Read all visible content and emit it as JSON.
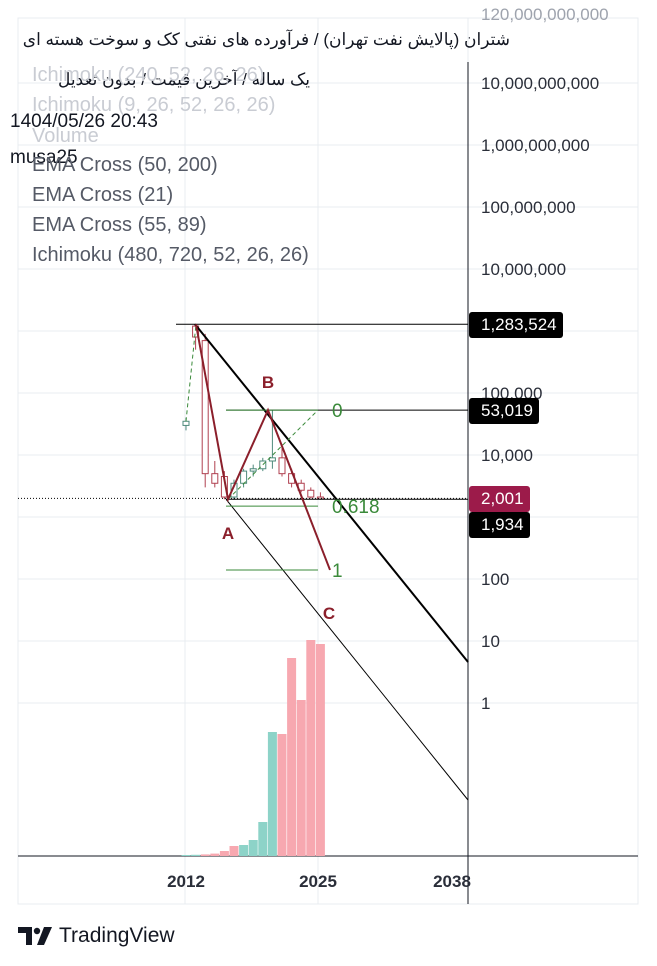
{
  "header": {
    "title": "شتران (پالایش نفت تهران) / فرآورده های نفتی کک و سوخت هسته ای",
    "subtitle": "یک ساله / آخرین قیمت / بدون تعدیل",
    "datetime": "1404/05/26 20:43",
    "author": "musa25"
  },
  "legend": {
    "ghost_lines": [
      "Ichimoku (240, 52, 26, 26)",
      "Ichimoku (9, 26, 52, 26, 26)",
      "Volume"
    ],
    "lines": [
      "EMA Cross (50, 200)",
      "EMA Cross (21)",
      "EMA Cross (55, 89)",
      "Ichimoku (480, 720, 52, 26, 26)"
    ]
  },
  "price_labels": [
    {
      "text": "1,283,524",
      "color": "#000000"
    },
    {
      "text": "53,019",
      "color": "#000000"
    },
    {
      "text": "2,001",
      "color": "#9c1b4a"
    },
    {
      "text": "1,934",
      "color": "#000000"
    }
  ],
  "branding": {
    "name": "TradingView"
  },
  "chart_data": {
    "type": "candlestick",
    "y_scale": "log",
    "y_ticks": [
      "120,000,000,000",
      "10,000,000,000",
      "1,000,000,000",
      "100,000,000",
      "10,000,000",
      "100,000",
      "10,000",
      "100",
      "10",
      "1"
    ],
    "x_ticks": [
      "2012",
      "2025",
      "2038"
    ],
    "candles": [
      {
        "o": 30000,
        "h": 40000,
        "l": 25000,
        "c": 35000,
        "dir": "up"
      },
      {
        "o": 1200000,
        "h": 1283524,
        "l": 500000,
        "c": 800000,
        "dir": "down"
      },
      {
        "o": 700000,
        "h": 900000,
        "l": 3000,
        "c": 5000,
        "dir": "down"
      },
      {
        "o": 5000,
        "h": 8000,
        "l": 3000,
        "c": 3500,
        "dir": "down"
      },
      {
        "o": 4500,
        "h": 5500,
        "l": 1934,
        "c": 2100,
        "dir": "down"
      },
      {
        "o": 2100,
        "h": 4000,
        "l": 1900,
        "c": 3500,
        "dir": "up"
      },
      {
        "o": 3500,
        "h": 6000,
        "l": 3000,
        "c": 5500,
        "dir": "up"
      },
      {
        "o": 5500,
        "h": 7000,
        "l": 4500,
        "c": 6000,
        "dir": "up"
      },
      {
        "o": 6000,
        "h": 9000,
        "l": 5500,
        "c": 8000,
        "dir": "up"
      },
      {
        "o": 8000,
        "h": 53019,
        "l": 6000,
        "c": 9000,
        "dir": "up"
      },
      {
        "o": 9000,
        "h": 15000,
        "l": 4500,
        "c": 5000,
        "dir": "down"
      },
      {
        "o": 5000,
        "h": 6000,
        "l": 3000,
        "c": 3500,
        "dir": "down"
      },
      {
        "o": 3500,
        "h": 4000,
        "l": 2500,
        "c": 2700,
        "dir": "down"
      },
      {
        "o": 2700,
        "h": 3000,
        "l": 2000,
        "c": 2100,
        "dir": "down"
      },
      {
        "o": 2100,
        "h": 2500,
        "l": 1900,
        "c": 2001,
        "dir": "down"
      }
    ],
    "volume": [
      {
        "v": 0.5,
        "dir": "up"
      },
      {
        "v": 0.6,
        "dir": "up"
      },
      {
        "v": 0.8,
        "dir": "down"
      },
      {
        "v": 1.2,
        "dir": "down"
      },
      {
        "v": 2.5,
        "dir": "down"
      },
      {
        "v": 5,
        "dir": "down"
      },
      {
        "v": 5.5,
        "dir": "up"
      },
      {
        "v": 8,
        "dir": "up"
      },
      {
        "v": 17,
        "dir": "up"
      },
      {
        "v": 62,
        "dir": "up"
      },
      {
        "v": 61,
        "dir": "down"
      },
      {
        "v": 99,
        "dir": "down"
      },
      {
        "v": 78,
        "dir": "down"
      },
      {
        "v": 108,
        "dir": "down"
      },
      {
        "v": 106,
        "dir": "down"
      }
    ],
    "pattern": {
      "points": [
        {
          "label": "B",
          "value": 53019
        },
        {
          "label": "A",
          "value": 1934
        },
        {
          "label": "C",
          "value": 140
        }
      ]
    },
    "fib_levels": [
      {
        "label": "0",
        "value": 53019
      },
      {
        "label": "0.618",
        "value": 1500
      },
      {
        "label": "1",
        "value": 140
      }
    ],
    "colors": {
      "up": "#8dd3c8",
      "down": "#f7a8b0",
      "pattern": "#8b1f2b",
      "fib": "#3a8a3a",
      "grid": "#e9ecf1"
    }
  }
}
